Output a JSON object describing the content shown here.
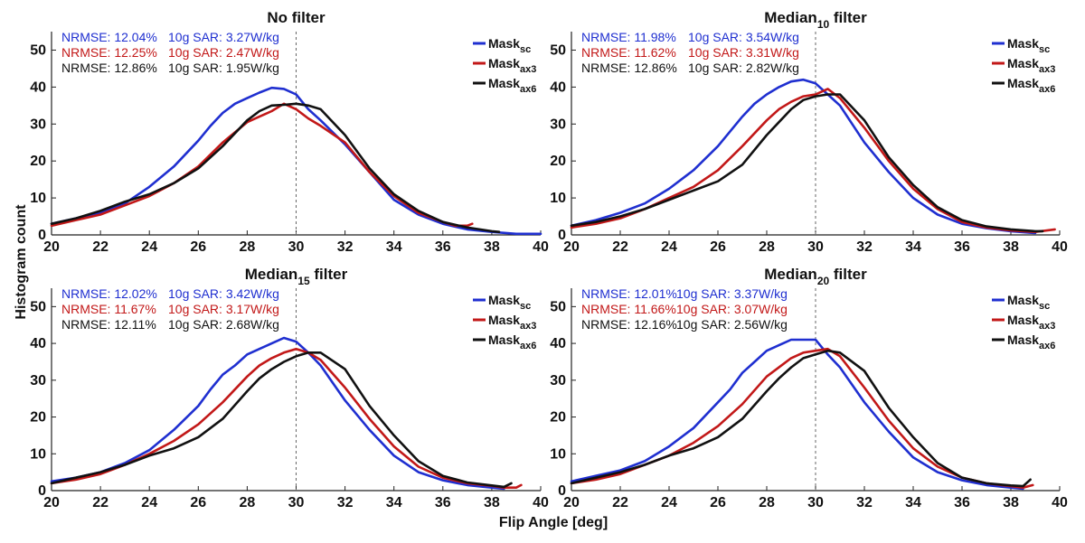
{
  "figure": {
    "xlabel": "Flip Angle [deg]",
    "ylabel": "Histogram count"
  },
  "colors": {
    "Mask_sc": "#1f2fd0",
    "Mask_ax3": "#c21818",
    "Mask_ax6": "#111111",
    "reference_line": "#666666"
  },
  "chart_data": [
    {
      "type": "line",
      "title": "No filter",
      "title_sub": "",
      "title_suffix": "",
      "xlim": [
        20,
        40
      ],
      "ylim": [
        0,
        55
      ],
      "xticks": [
        20,
        22,
        24,
        26,
        28,
        30,
        32,
        34,
        36,
        38,
        40
      ],
      "yticks": [
        0,
        10,
        20,
        30,
        40,
        50
      ],
      "reference_x": 30,
      "stats": [
        {
          "nrmse": "NRMSE: 12.04%",
          "sar": "10g SAR: 3.27W/kg",
          "series": "Mask_sc"
        },
        {
          "nrmse": "NRMSE: 12.25%",
          "sar": "10g SAR: 2.47W/kg",
          "series": "Mask_ax3"
        },
        {
          "nrmse": "NRMSE: 12.86%",
          "sar": "10g SAR: 1.95W/kg",
          "series": "Mask_ax6"
        }
      ],
      "legend": [
        {
          "name": "Mask",
          "sub": "sc",
          "series": "Mask_sc"
        },
        {
          "name": "Mask",
          "sub": "ax3",
          "series": "Mask_ax3"
        },
        {
          "name": "Mask",
          "sub": "ax6",
          "series": "Mask_ax6"
        }
      ],
      "series": [
        {
          "name": "Mask_sc",
          "x": [
            20,
            21,
            22,
            23,
            24,
            25,
            26,
            26.5,
            27,
            27.5,
            28,
            28.5,
            29,
            29.5,
            30,
            30.5,
            31,
            32,
            33,
            34,
            35,
            36,
            37,
            38,
            39,
            40
          ],
          "y": [
            3,
            4.5,
            6,
            8.5,
            13,
            18.5,
            25.5,
            29.5,
            33,
            35.5,
            37,
            38.5,
            39.8,
            39.5,
            38,
            34,
            31,
            24.5,
            17,
            9.5,
            5.5,
            3,
            1.5,
            0.8,
            0.3,
            0.3
          ]
        },
        {
          "name": "Mask_ax3",
          "x": [
            20,
            21,
            22,
            23,
            24,
            25,
            26,
            27,
            28,
            28.5,
            29,
            29.5,
            30,
            30.5,
            31,
            32,
            33,
            34,
            35,
            36,
            36.5,
            37,
            37.2
          ],
          "y": [
            2.5,
            4,
            5.5,
            8,
            10.5,
            14,
            18.5,
            25,
            30.5,
            32,
            33.5,
            35.5,
            34,
            31.5,
            29.5,
            25,
            17,
            10.5,
            6,
            3.5,
            2.5,
            2.5,
            3
          ]
        },
        {
          "name": "Mask_ax6",
          "x": [
            20,
            21,
            22,
            23,
            24,
            25,
            26,
            27,
            28,
            28.5,
            29,
            29.5,
            30,
            30.5,
            31,
            32,
            33,
            34,
            35,
            36,
            37,
            38,
            38.3
          ],
          "y": [
            3,
            4.5,
            6.5,
            9,
            11,
            14,
            18,
            24,
            31,
            33.5,
            35,
            35.2,
            35.5,
            35,
            34,
            27,
            18,
            11,
            6.5,
            3.5,
            2,
            1,
            0.8
          ]
        }
      ]
    },
    {
      "type": "line",
      "title": "Median",
      "title_sub": "10",
      "title_suffix": " filter",
      "xlim": [
        20,
        40
      ],
      "ylim": [
        0,
        55
      ],
      "xticks": [
        20,
        22,
        24,
        26,
        28,
        30,
        32,
        34,
        36,
        38,
        40
      ],
      "yticks": [
        0,
        10,
        20,
        30,
        40,
        50
      ],
      "reference_x": 30,
      "stats": [
        {
          "nrmse": "NRMSE: 11.98%",
          "sar": "10g SAR: 3.54W/kg",
          "series": "Mask_sc"
        },
        {
          "nrmse": "NRMSE: 11.62%",
          "sar": "10g SAR: 3.31W/kg",
          "series": "Mask_ax3"
        },
        {
          "nrmse": "NRMSE: 12.86%",
          "sar": "10g SAR: 2.82W/kg",
          "series": "Mask_ax6"
        }
      ],
      "legend": [
        {
          "name": "Mask",
          "sub": "sc",
          "series": "Mask_sc"
        },
        {
          "name": "Mask",
          "sub": "ax3",
          "series": "Mask_ax3"
        },
        {
          "name": "Mask",
          "sub": "ax6",
          "series": "Mask_ax6"
        }
      ],
      "series": [
        {
          "name": "Mask_sc",
          "x": [
            20,
            21,
            22,
            23,
            24,
            25,
            26,
            27,
            27.5,
            28,
            28.5,
            29,
            29.5,
            30,
            30.5,
            31,
            32,
            33,
            34,
            35,
            36,
            37,
            38,
            39
          ],
          "y": [
            2.5,
            4,
            6,
            8.5,
            12.5,
            17.5,
            24,
            32,
            35.5,
            38,
            40,
            41.5,
            42,
            41,
            38,
            35,
            25,
            17,
            10,
            5.5,
            3,
            1.8,
            1,
            0.5
          ]
        },
        {
          "name": "Mask_ax3",
          "x": [
            20,
            21,
            22,
            23,
            24,
            25,
            26,
            27,
            28,
            28.5,
            29,
            29.5,
            30,
            30.5,
            31,
            32,
            33,
            34,
            35,
            36,
            37,
            38,
            39,
            39.8
          ],
          "y": [
            2,
            3,
            4.5,
            7,
            10,
            13,
            17.5,
            24,
            31,
            34,
            36,
            37.5,
            38,
            39.5,
            37,
            29,
            20,
            12.5,
            7,
            3.5,
            2,
            1.2,
            0.8,
            1.5
          ]
        },
        {
          "name": "Mask_ax6",
          "x": [
            20,
            21,
            22,
            23,
            24,
            25,
            26,
            27,
            28,
            28.5,
            29,
            29.5,
            30,
            30.5,
            31,
            32,
            33,
            34,
            35,
            36,
            37,
            38,
            39,
            39.3
          ],
          "y": [
            2.5,
            3.5,
            5,
            7,
            9.5,
            12,
            14.5,
            19,
            27,
            30.5,
            34,
            36.5,
            37.5,
            38,
            38,
            31,
            21,
            13.5,
            7.5,
            4,
            2.3,
            1.5,
            1,
            1
          ]
        }
      ]
    },
    {
      "type": "line",
      "title": "Median",
      "title_sub": "15",
      "title_suffix": " filter",
      "xlim": [
        20,
        40
      ],
      "ylim": [
        0,
        55
      ],
      "xticks": [
        20,
        22,
        24,
        26,
        28,
        30,
        32,
        34,
        36,
        38,
        40
      ],
      "yticks": [
        0,
        10,
        20,
        30,
        40,
        50
      ],
      "reference_x": 30,
      "stats": [
        {
          "nrmse": "NRMSE: 12.02%",
          "sar": "10g SAR: 3.42W/kg",
          "series": "Mask_sc"
        },
        {
          "nrmse": "NRMSE: 11.67%",
          "sar": "10g SAR: 3.17W/kg",
          "series": "Mask_ax3"
        },
        {
          "nrmse": "NRMSE: 12.11%",
          "sar": "10g SAR: 2.68W/kg",
          "series": "Mask_ax6"
        }
      ],
      "legend": [
        {
          "name": "Mask",
          "sub": "sc",
          "series": "Mask_sc"
        },
        {
          "name": "Mask",
          "sub": "ax3",
          "series": "Mask_ax3"
        },
        {
          "name": "Mask",
          "sub": "ax6",
          "series": "Mask_ax6"
        }
      ],
      "series": [
        {
          "name": "Mask_sc",
          "x": [
            20,
            21,
            22,
            23,
            24,
            25,
            26,
            26.5,
            27,
            27.5,
            28,
            28.5,
            29,
            29.5,
            30,
            30.5,
            31,
            32,
            33,
            34,
            35,
            36,
            37,
            38,
            38.5
          ],
          "y": [
            2.5,
            3.5,
            5,
            7.5,
            11,
            16.5,
            23,
            27.5,
            31.5,
            34,
            37,
            38.5,
            40,
            41.5,
            40.5,
            37.5,
            34,
            24.5,
            16.5,
            9.5,
            5,
            2.8,
            1.5,
            0.8,
            0.5
          ]
        },
        {
          "name": "Mask_ax3",
          "x": [
            20,
            21,
            22,
            23,
            24,
            25,
            26,
            27,
            28,
            28.5,
            29,
            29.5,
            30,
            30.5,
            31,
            32,
            33,
            34,
            35,
            36,
            37,
            38,
            38.5,
            39,
            39.2
          ],
          "y": [
            2,
            3,
            4.5,
            7,
            10,
            13.5,
            18,
            24,
            31,
            34,
            36,
            37.5,
            38.5,
            37.5,
            35.5,
            28,
            19.5,
            12,
            6.5,
            3.5,
            2,
            1.3,
            0.8,
            0.8,
            1.5
          ]
        },
        {
          "name": "Mask_ax6",
          "x": [
            20,
            21,
            22,
            23,
            24,
            25,
            26,
            27,
            28,
            28.5,
            29,
            29.5,
            30,
            30.5,
            31,
            32,
            33,
            34,
            35,
            36,
            37,
            38,
            38.5,
            38.8
          ],
          "y": [
            2,
            3.5,
            5,
            7,
            9.5,
            11.5,
            14.5,
            19.5,
            27,
            30.5,
            33,
            35,
            36.5,
            37.5,
            37.5,
            33,
            23,
            15,
            8,
            4,
            2.2,
            1.4,
            1,
            2
          ]
        }
      ]
    },
    {
      "type": "line",
      "title": "Median",
      "title_sub": "20",
      "title_suffix": " filter",
      "xlim": [
        20,
        40
      ],
      "ylim": [
        0,
        55
      ],
      "xticks": [
        20,
        22,
        24,
        26,
        28,
        30,
        32,
        34,
        36,
        38,
        40
      ],
      "yticks": [
        0,
        10,
        20,
        30,
        40,
        50
      ],
      "reference_x": 30,
      "stats": [
        {
          "nrmse": "NRMSE: 12.01%",
          "sar": "10g SAR: 3.37W/kg",
          "series": "Mask_sc"
        },
        {
          "nrmse": "NRMSE: 11.66%",
          "sar": "10g SAR: 3.07W/kg",
          "series": "Mask_ax3"
        },
        {
          "nrmse": "NRMSE: 12.16%",
          "sar": "10g SAR: 2.56W/kg",
          "series": "Mask_ax6"
        }
      ],
      "legend": [
        {
          "name": "Mask",
          "sub": "sc",
          "series": "Mask_sc"
        },
        {
          "name": "Mask",
          "sub": "ax3",
          "series": "Mask_ax3"
        },
        {
          "name": "Mask",
          "sub": "ax6",
          "series": "Mask_ax6"
        }
      ],
      "series": [
        {
          "name": "Mask_sc",
          "x": [
            20,
            21,
            22,
            23,
            24,
            25,
            26,
            26.5,
            27,
            27.5,
            28,
            28.5,
            29,
            29.5,
            30,
            30.5,
            31,
            32,
            33,
            34,
            35,
            36,
            37,
            38,
            38.5
          ],
          "y": [
            2.5,
            4,
            5.5,
            8,
            12,
            17,
            24,
            27.5,
            32,
            35,
            38,
            39.5,
            41,
            41,
            41,
            37,
            33.5,
            24,
            16,
            9,
            5,
            2.8,
            1.5,
            0.8,
            0.5
          ]
        },
        {
          "name": "Mask_ax3",
          "x": [
            20,
            21,
            22,
            23,
            24,
            25,
            26,
            27,
            28,
            28.5,
            29,
            29.5,
            30,
            30.5,
            31,
            32,
            33,
            34,
            35,
            36,
            37,
            38,
            38.5,
            38.9
          ],
          "y": [
            2,
            3,
            4.5,
            7,
            9.5,
            13,
            17.5,
            23.5,
            31,
            33.5,
            36,
            37.5,
            38,
            38.5,
            36.5,
            28,
            19,
            11.5,
            6.5,
            3.5,
            2,
            1.2,
            0.8,
            1.5
          ]
        },
        {
          "name": "Mask_ax6",
          "x": [
            20,
            21,
            22,
            23,
            24,
            25,
            26,
            27,
            28,
            28.5,
            29,
            29.5,
            30,
            30.5,
            31,
            32,
            33,
            34,
            35,
            36,
            37,
            38,
            38.5,
            38.8
          ],
          "y": [
            2,
            3.5,
            5,
            7,
            9.5,
            11.5,
            14.5,
            19.5,
            27,
            30.5,
            33.5,
            36,
            37,
            38,
            37.5,
            32.5,
            22.5,
            14.5,
            7.5,
            3.5,
            2,
            1.4,
            1.2,
            3
          ]
        }
      ]
    }
  ]
}
